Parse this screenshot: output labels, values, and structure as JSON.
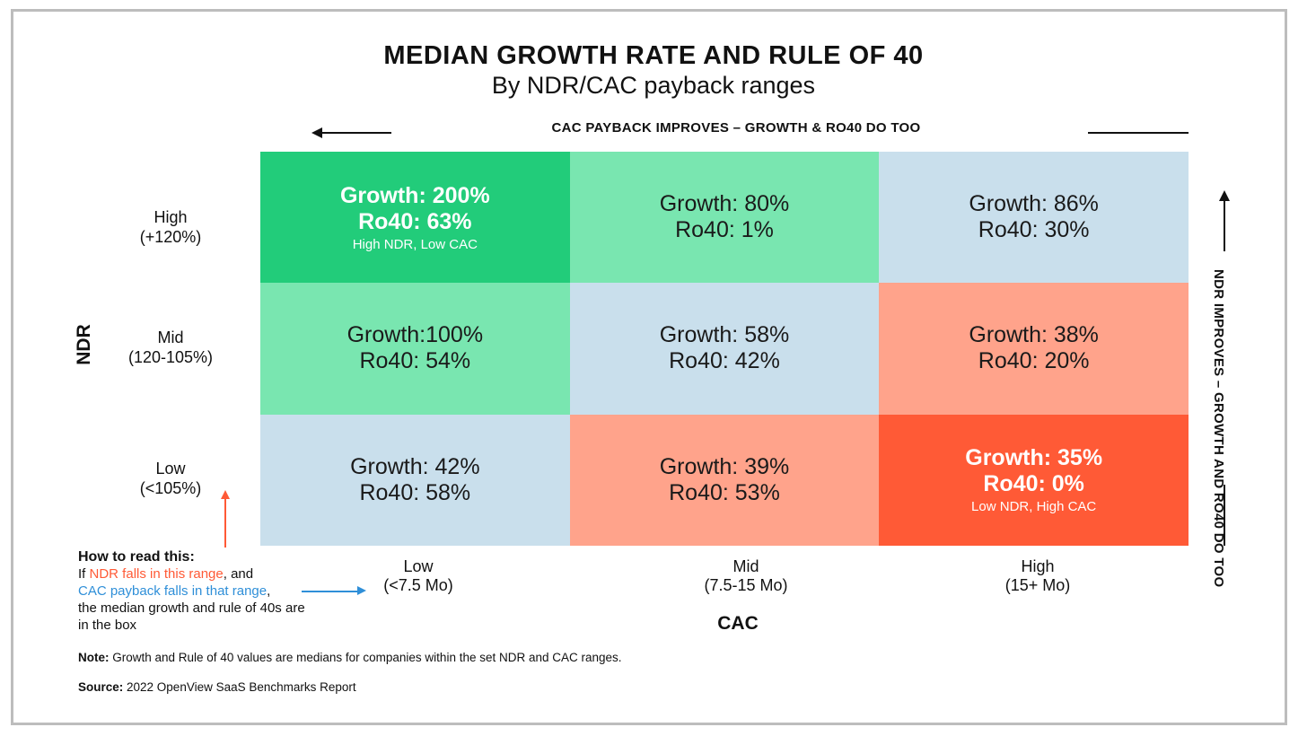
{
  "chart_data": {
    "type": "table",
    "title": "MEDIAN GROWTH RATE AND RULE OF 40",
    "subtitle": "By NDR/CAC payback ranges",
    "top_banner": "CAC PAYBACK IMPROVES – GROWTH & RO40 DO TOO",
    "right_banner": "NDR IMPROVES – GROWTH AND RO40 DO TOO",
    "y_axis": {
      "label": "NDR",
      "rows": [
        {
          "name": "High",
          "range": "(+120%)"
        },
        {
          "name": "Mid",
          "range": "(120-105%)"
        },
        {
          "name": "Low",
          "range": "(<105%)"
        }
      ]
    },
    "x_axis": {
      "label": "CAC",
      "columns": [
        {
          "name": "Low",
          "range": "(<7.5 Mo)"
        },
        {
          "name": "Mid",
          "range": "(7.5-15 Mo)"
        },
        {
          "name": "High",
          "range": "(15+ Mo)"
        }
      ]
    },
    "cells": [
      {
        "ndr": "High",
        "cac": "Low",
        "growth": "Growth: 200%",
        "ro40": "Ro40: 63%",
        "note": "High NDR, Low CAC",
        "growth_pct": 200,
        "ro40_pct": 63,
        "color": "#22cc7a",
        "text_color": "#ffffff",
        "bold": true
      },
      {
        "ndr": "High",
        "cac": "Mid",
        "growth": "Growth: 80%",
        "ro40": "Ro40: 1%",
        "note": "",
        "growth_pct": 80,
        "ro40_pct": 1,
        "color": "#79e6b0",
        "text_color": "#1a1a1a",
        "bold": false
      },
      {
        "ndr": "High",
        "cac": "High",
        "growth": "Growth: 86%",
        "ro40": "Ro40: 30%",
        "note": "",
        "growth_pct": 86,
        "ro40_pct": 30,
        "color": "#c9dfec",
        "text_color": "#1a1a1a",
        "bold": false
      },
      {
        "ndr": "Mid",
        "cac": "Low",
        "growth": "Growth:100%",
        "ro40": "Ro40: 54%",
        "note": "",
        "growth_pct": 100,
        "ro40_pct": 54,
        "color": "#79e6b0",
        "text_color": "#1a1a1a",
        "bold": false
      },
      {
        "ndr": "Mid",
        "cac": "Mid",
        "growth": "Growth: 58%",
        "ro40": "Ro40: 42%",
        "note": "",
        "growth_pct": 58,
        "ro40_pct": 42,
        "color": "#c9dfec",
        "text_color": "#1a1a1a",
        "bold": false
      },
      {
        "ndr": "Mid",
        "cac": "High",
        "growth": "Growth: 38%",
        "ro40": "Ro40: 20%",
        "note": "",
        "growth_pct": 38,
        "ro40_pct": 20,
        "color": "#ffa38b",
        "text_color": "#1a1a1a",
        "bold": false
      },
      {
        "ndr": "Low",
        "cac": "Low",
        "growth": "Growth: 42%",
        "ro40": "Ro40: 58%",
        "note": "",
        "growth_pct": 42,
        "ro40_pct": 58,
        "color": "#c9dfec",
        "text_color": "#1a1a1a",
        "bold": false
      },
      {
        "ndr": "Low",
        "cac": "Mid",
        "growth": "Growth: 39%",
        "ro40": "Ro40: 53%",
        "note": "",
        "growth_pct": 39,
        "ro40_pct": 53,
        "color": "#ffa38b",
        "text_color": "#1a1a1a",
        "bold": false
      },
      {
        "ndr": "Low",
        "cac": "High",
        "growth": "Growth: 35%",
        "ro40": "Ro40: 0%",
        "note": "Low NDR, High CAC",
        "growth_pct": 35,
        "ro40_pct": 0,
        "color": "#ff5a36",
        "text_color": "#ffffff",
        "bold": true
      }
    ]
  },
  "how_to": {
    "heading": "How to read this:",
    "if": "If ",
    "ndr_phrase": "NDR falls in this range",
    "and": ", and",
    "cac_phrase": "CAC payback falls in that range",
    "comma": ",",
    "rest": "the median growth and rule of 40s are in the box",
    "ndr_color": "#ff5a36",
    "cac_color": "#2f8fd8"
  },
  "note": {
    "label": "Note:",
    "text": " Growth and Rule of 40 values are medians for companies within the set NDR and CAC ranges."
  },
  "source": {
    "label": "Source:",
    "text": " 2022 OpenView SaaS Benchmarks Report"
  }
}
